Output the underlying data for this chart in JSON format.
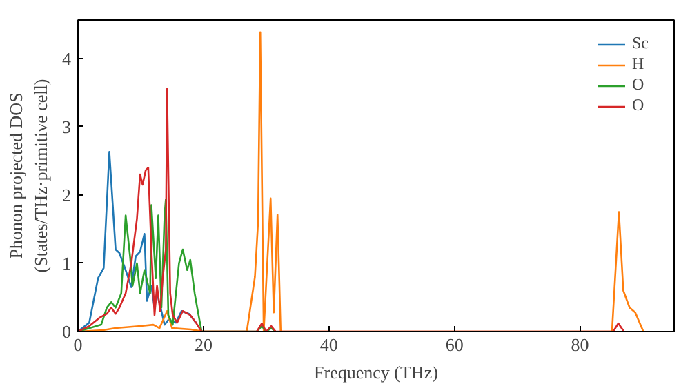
{
  "chart_data": {
    "type": "line",
    "xlabel": "Frequency (THz)",
    "ylabel": "Phonon projected DOS\n(States/THz·primitive cell)",
    "xlim": [
      0,
      95
    ],
    "ylim": [
      0,
      4.56
    ],
    "xticks": [
      0,
      20,
      40,
      60,
      80
    ],
    "yticks": [
      0,
      1,
      2,
      3,
      4
    ],
    "grid": false,
    "legend": "top right",
    "marker": "none",
    "line_style": "solid",
    "series": [
      {
        "name": "Sc",
        "color": "#1f77b4",
        "x": [
          0,
          1.8,
          3.2,
          4.1,
          5.0,
          6.0,
          6.6,
          7.6,
          8.5,
          9.2,
          9.9,
          10.6,
          11.0,
          11.7,
          12.2,
          12.6,
          13.3,
          13.8,
          14.4,
          15.6,
          16.5,
          17.7,
          18.8
        ],
        "values": [
          0,
          0.13,
          0.78,
          0.93,
          2.63,
          1.2,
          1.15,
          0.9,
          0.65,
          1.1,
          1.17,
          1.43,
          0.45,
          0.67,
          0.35,
          0.56,
          0.3,
          0.1,
          0.17,
          0.13,
          0.3,
          0.26,
          0.13
        ]
      },
      {
        "name": "H",
        "color": "#ff7f0e",
        "x": [
          0,
          4,
          6,
          10,
          12,
          13,
          14.2,
          15,
          18,
          20,
          26.9,
          28.2,
          28.7,
          29.05,
          29.6,
          30.7,
          31.2,
          31.8,
          32.3,
          85.1,
          86.2,
          86.9,
          87.9,
          88.8,
          90.1
        ],
        "values": [
          0,
          0.02,
          0.05,
          0.08,
          0.1,
          0.05,
          0.3,
          0.05,
          0.03,
          0,
          0,
          0.8,
          1.6,
          4.38,
          0,
          1.95,
          0.28,
          1.71,
          0,
          0,
          1.75,
          0.6,
          0.35,
          0.28,
          0
        ]
      },
      {
        "name": "O",
        "color": "#2ca02c",
        "x": [
          0,
          3.7,
          4.6,
          5.3,
          6.0,
          6.9,
          7.6,
          8.3,
          8.7,
          9.4,
          9.9,
          10.6,
          11.5,
          11.7,
          12.4,
          12.8,
          13.3,
          13.8,
          14.0,
          14.4,
          15.1,
          16.1,
          16.7,
          17.4,
          17.9,
          18.6,
          19.0,
          19.7,
          28.5,
          29.3,
          30.0,
          30.8,
          31.5
        ],
        "values": [
          0,
          0.1,
          0.35,
          0.43,
          0.35,
          0.56,
          1.7,
          1.1,
          0.67,
          1.0,
          0.56,
          0.9,
          0.56,
          1.85,
          0.78,
          1.7,
          0.35,
          1.7,
          1.93,
          0.24,
          0.1,
          1.0,
          1.2,
          0.9,
          1.05,
          0.56,
          0.35,
          0,
          0,
          0.08,
          0,
          0.05,
          0
        ]
      },
      {
        "name": "O",
        "color": "#d62728",
        "x": [
          0,
          1.8,
          3.4,
          4.6,
          5.3,
          6.0,
          6.6,
          7.6,
          8.5,
          9.4,
          9.9,
          10.3,
          10.8,
          11.2,
          11.7,
          12.2,
          12.6,
          13.1,
          13.5,
          14.0,
          14.2,
          14.7,
          15.1,
          15.8,
          16.7,
          17.9,
          18.8,
          19.7,
          28.5,
          29.3,
          30.0,
          30.8,
          31.5,
          85.3,
          86.1,
          87.0
        ],
        "values": [
          0,
          0.08,
          0.2,
          0.26,
          0.35,
          0.26,
          0.35,
          0.56,
          1.0,
          1.65,
          2.3,
          2.15,
          2.36,
          2.4,
          1.2,
          0.24,
          0.67,
          0.3,
          0.78,
          1.2,
          3.55,
          0.56,
          0.24,
          0.13,
          0.3,
          0.24,
          0.13,
          0,
          0,
          0.12,
          0,
          0.08,
          0,
          0,
          0.12,
          0
        ]
      }
    ]
  }
}
